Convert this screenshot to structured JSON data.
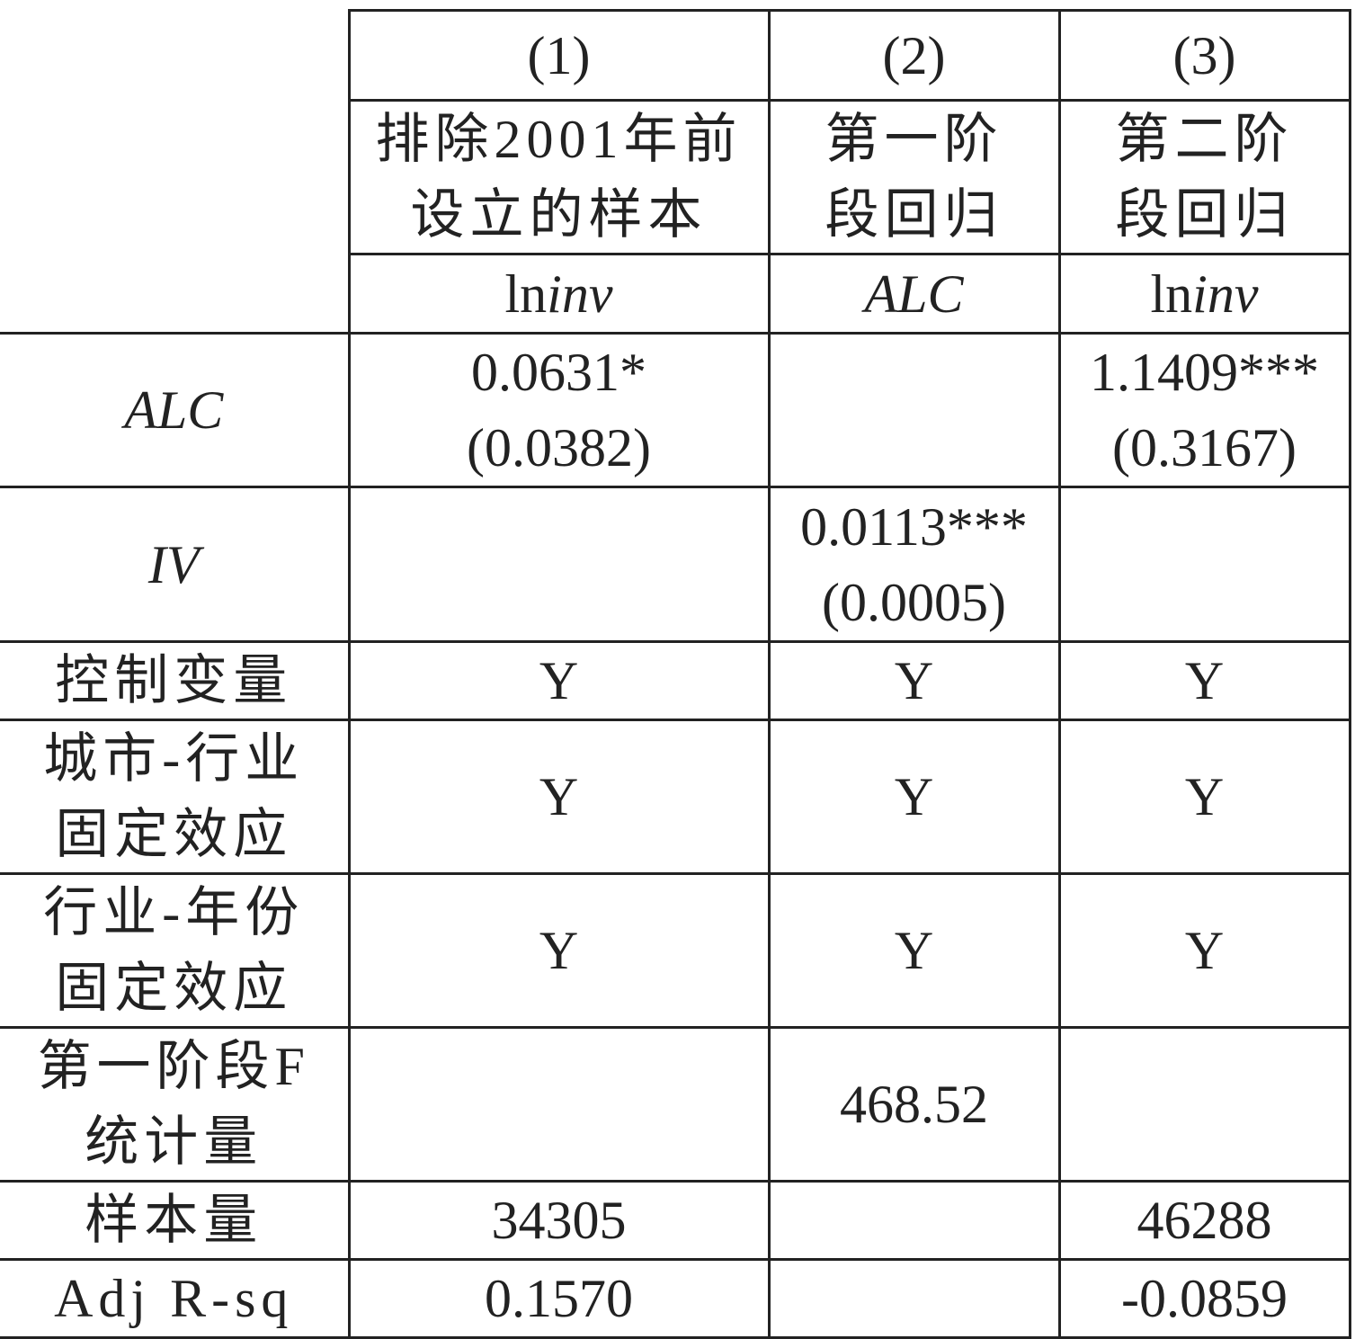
{
  "header": {
    "col_numbers": [
      "(1)",
      "(2)",
      "(3)"
    ],
    "col_descriptions": [
      [
        "排除2001年前",
        "设立的样本"
      ],
      [
        "第一阶",
        "段回归"
      ],
      [
        "第二阶",
        "段回归"
      ]
    ],
    "dependent_vars": [
      {
        "prefix": "ln",
        "italic": "inv"
      },
      {
        "prefix": "",
        "italic": "ALC"
      },
      {
        "prefix": "ln",
        "italic": "inv"
      }
    ]
  },
  "rows": [
    {
      "label": [
        "ALC"
      ],
      "italic": true,
      "cells": [
        [
          "0.0631*",
          "(0.0382)"
        ],
        [],
        [
          "1.1409***",
          "(0.3167)"
        ]
      ]
    },
    {
      "label": [
        "IV"
      ],
      "italic": true,
      "cells": [
        [],
        [
          "0.0113***",
          "(0.0005)"
        ],
        []
      ]
    },
    {
      "label": [
        "控制变量"
      ],
      "cells": [
        [
          "Y"
        ],
        [
          "Y"
        ],
        [
          "Y"
        ]
      ]
    },
    {
      "label": [
        "城市-行业",
        "固定效应"
      ],
      "cells": [
        [
          "Y"
        ],
        [
          "Y"
        ],
        [
          "Y"
        ]
      ]
    },
    {
      "label": [
        "行业-年份",
        "固定效应"
      ],
      "cells": [
        [
          "Y"
        ],
        [
          "Y"
        ],
        [
          "Y"
        ]
      ]
    },
    {
      "label": [
        "第一阶段F",
        "统计量"
      ],
      "cells": [
        [],
        [
          "468.52"
        ],
        []
      ]
    },
    {
      "label": [
        "样本量"
      ],
      "cells": [
        [
          "34305"
        ],
        [],
        [
          "46288"
        ]
      ]
    },
    {
      "label": [
        "Adj R-sq"
      ],
      "cells": [
        [
          "0.1570"
        ],
        [],
        [
          "-0.0859"
        ]
      ]
    }
  ]
}
